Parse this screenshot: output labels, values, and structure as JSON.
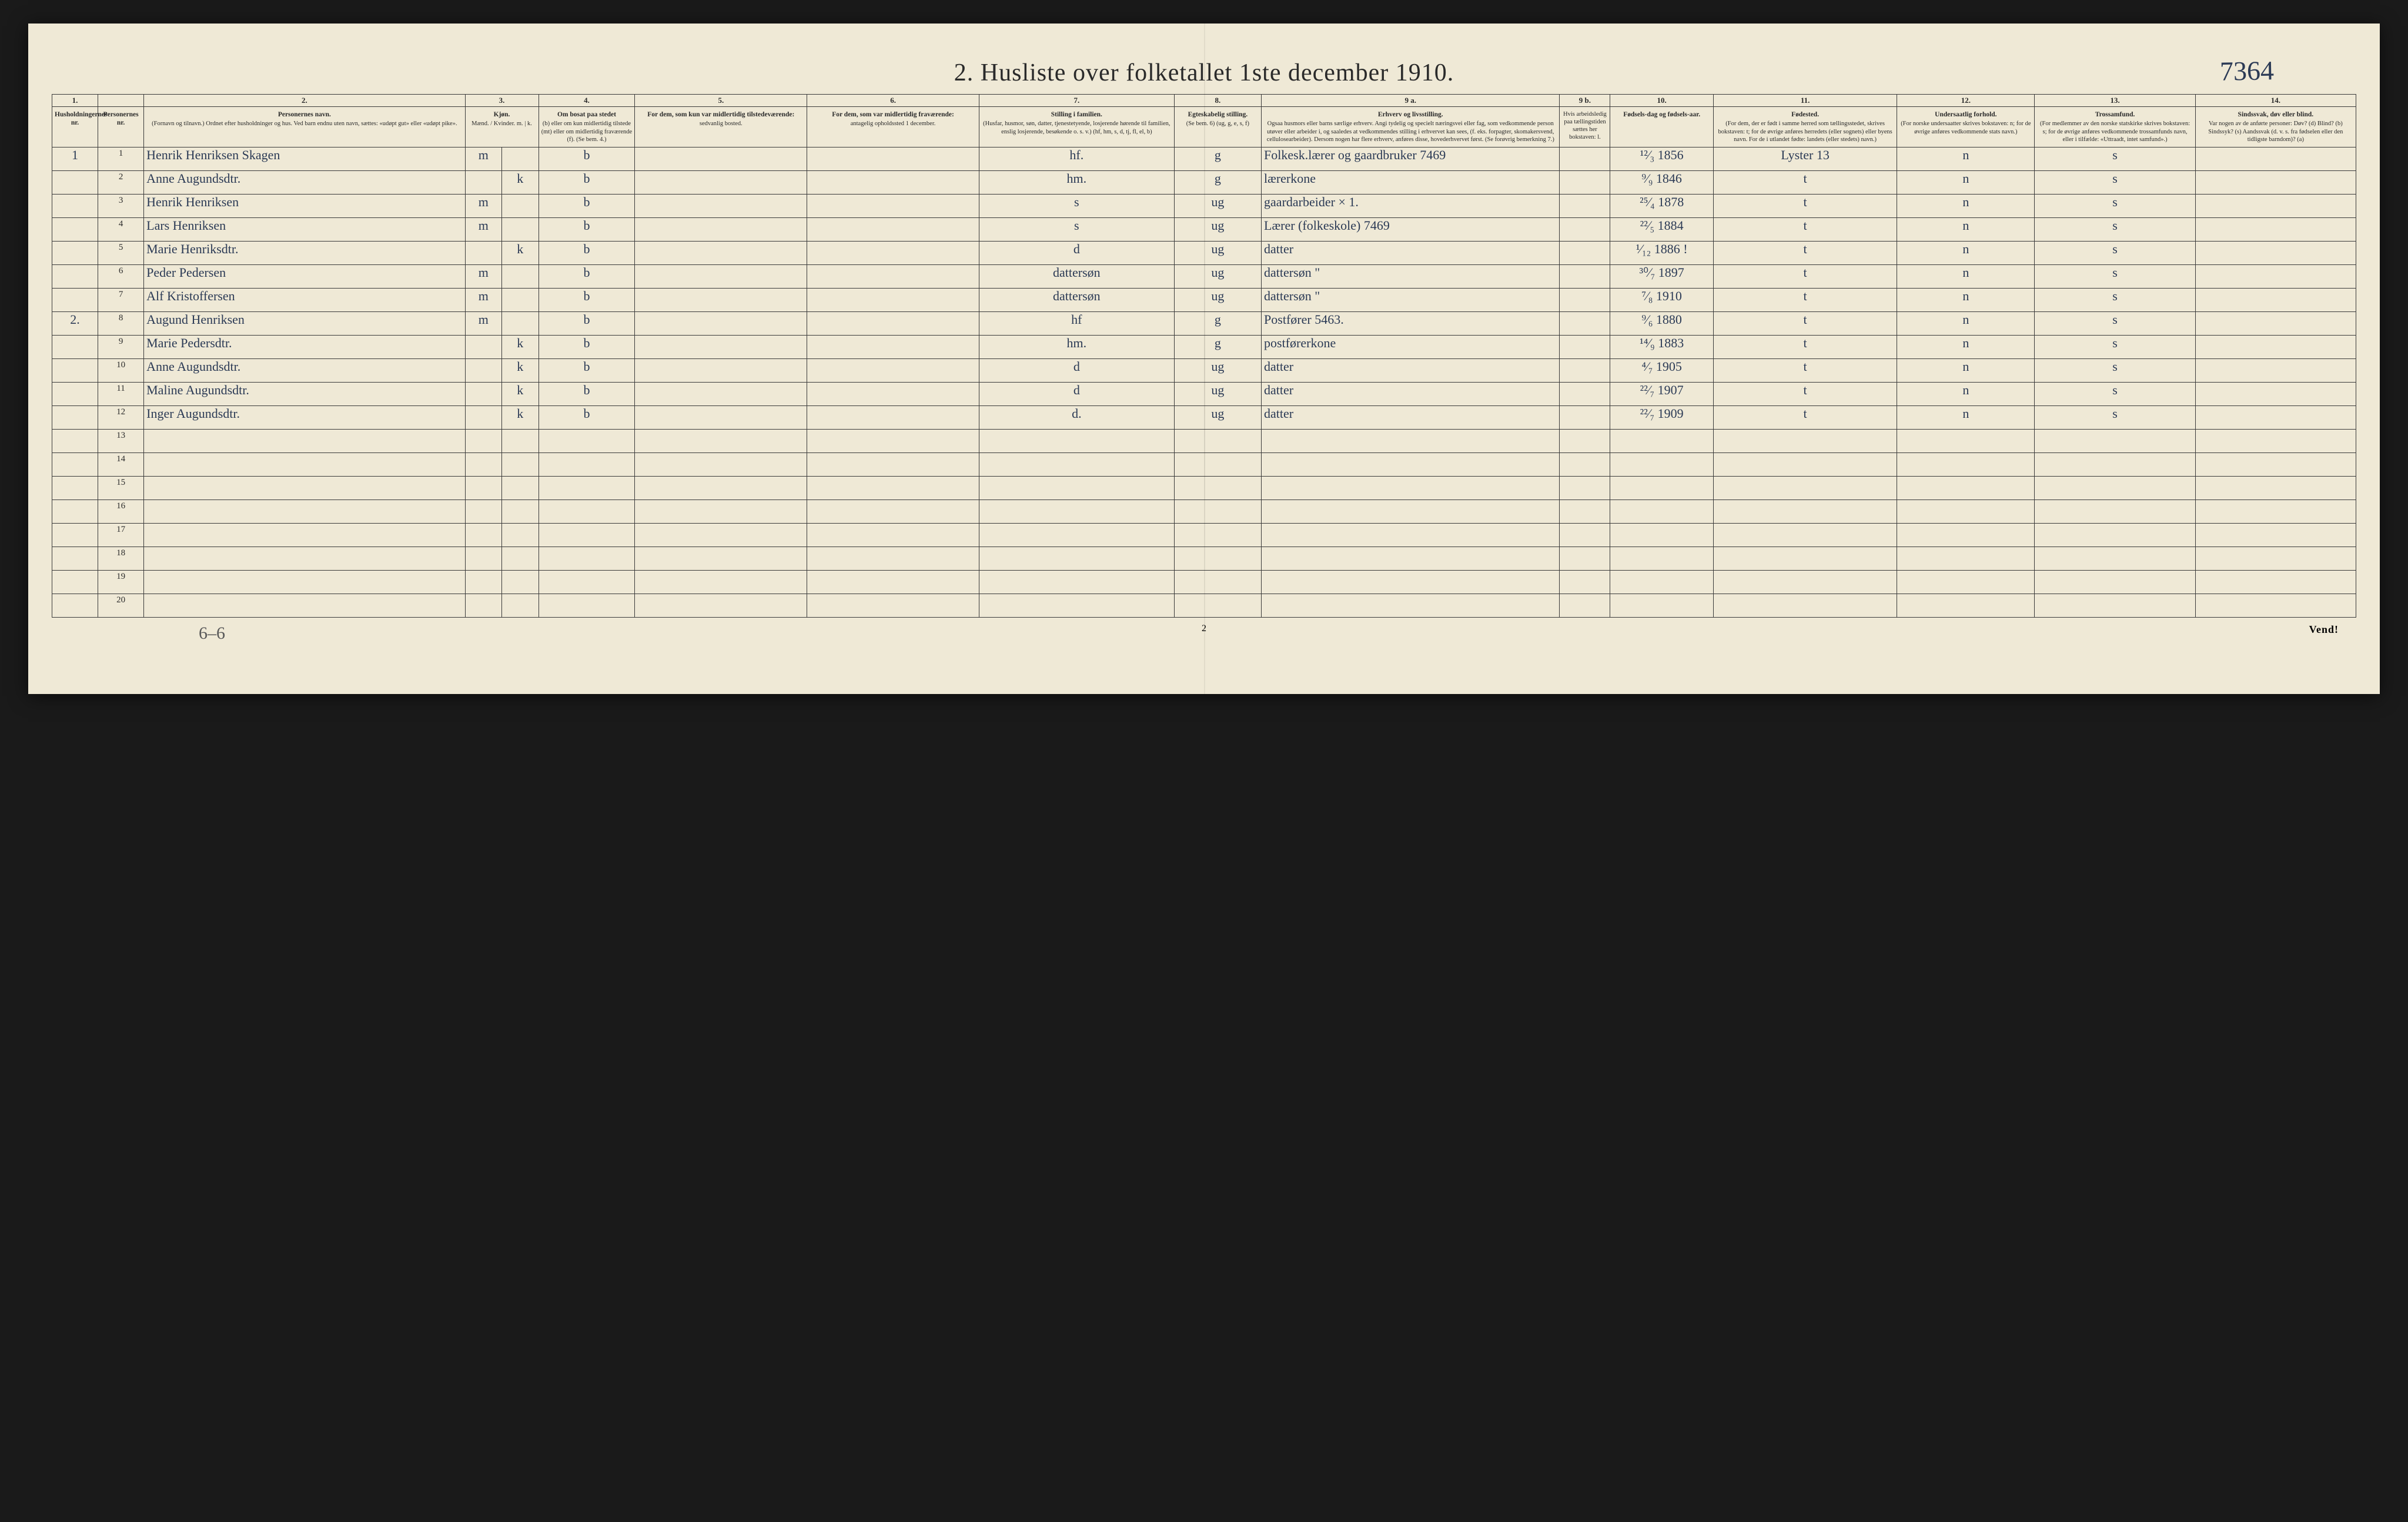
{
  "colors": {
    "page_bg": "#efe9d6",
    "frame_bg": "#1a1a1a",
    "rule": "#3a3a3a",
    "ink_print": "#2a2a2a",
    "ink_hand": "#2b3a55"
  },
  "typography": {
    "title_fontsize_pt": 32,
    "header_fontsize_pt": 9,
    "body_hand_fontsize_pt": 16,
    "font_family_print": "Times New Roman",
    "font_family_hand": "cursive"
  },
  "title": "2.  Husliste over folketallet 1ste december 1910.",
  "handwritten_code": "7364",
  "footer": {
    "page_number": "2",
    "vend": "Vend!",
    "tally": "6–6"
  },
  "column_numbers": [
    "1.",
    "",
    "2.",
    "3.",
    "",
    "4.",
    "5.",
    "6.",
    "7.",
    "8.",
    "9 a.",
    "9 b.",
    "10.",
    "11.",
    "12.",
    "13.",
    "14."
  ],
  "headers": {
    "c1": {
      "title": "Husholdningernes nr."
    },
    "c1b": {
      "title": "Personernes nr."
    },
    "c2": {
      "title": "Personernes navn.",
      "sub": "(Fornavn og tilnavn.) Ordnet efter husholdninger og hus. Ved barn endnu uten navn, sættes: «udøpt gut» eller «udøpt pike»."
    },
    "c3": {
      "title": "Kjøn.",
      "sub": "Mænd. / Kvinder.  m. | k."
    },
    "c4": {
      "title": "Om bosat paa stedet",
      "sub": "(b) eller om kun midlertidig tilstede (mt) eller om midlertidig fraværende (f). (Se bem. 4.)"
    },
    "c5": {
      "title": "For dem, som kun var midlertidig tilstedeværende:",
      "sub": "sedvanlig bosted."
    },
    "c6": {
      "title": "For dem, som var midlertidig fraværende:",
      "sub": "antagelig opholdssted 1 december."
    },
    "c7": {
      "title": "Stilling i familien.",
      "sub": "(Husfar, husmor, søn, datter, tjenestetyende, losjerende hørende til familien, enslig losjerende, besøkende o. s. v.) (hf, hm, s, d, tj, fl, el, b)"
    },
    "c8": {
      "title": "Egteskabelig stilling.",
      "sub": "(Se bem. 6) (ug, g, e, s, f)"
    },
    "c9a": {
      "title": "Erhverv og livsstilling.",
      "sub": "Ogsaa husmors eller barns særlige erhverv. Angi tydelig og specielt næringsvei eller fag, som vedkommende person utøver eller arbeider i, og saaledes at vedkommendes stilling i erhvervet kan sees, (f. eks. forpagter, skomakersvend, cellulosearbeider). Dersom nogen har flere erhverv, anføres disse, hovederhvervet først. (Se forøvrig bemerkning 7.)"
    },
    "c9b": {
      "title": "",
      "sub": "Hvis arbeidsledig paa tællingstiden sættes her bokstaven: l."
    },
    "c10": {
      "title": "Fødsels-dag og fødsels-aar."
    },
    "c11": {
      "title": "Fødested.",
      "sub": "(For dem, der er født i samme herred som tællingsstedet, skrives bokstaven: t; for de øvrige anføres herredets (eller sognets) eller byens navn. For de i utlandet fødte: landets (eller stedets) navn.)"
    },
    "c12": {
      "title": "Undersaatlig forhold.",
      "sub": "(For norske undersaatter skrives bokstaven: n; for de øvrige anføres vedkommende stats navn.)"
    },
    "c13": {
      "title": "Trossamfund.",
      "sub": "(For medlemmer av den norske statskirke skrives bokstaven: s; for de øvrige anføres vedkommende trossamfunds navn, eller i tilfælde: «Uttraadt, intet samfund».)"
    },
    "c14": {
      "title": "Sindssvak, døv eller blind.",
      "sub": "Var nogen av de anførte personer: Døv? (d)  Blind? (b)  Sindssyk? (s)  Aandssvak (d. v. s. fra fødselen eller den tidligste barndom)? (a)"
    }
  },
  "rows": [
    {
      "hh": "1",
      "pn": "1",
      "name": "Henrik Henriksen Skagen",
      "sex_m": "m",
      "sex_k": "",
      "res": "b",
      "c5": "",
      "c6": "",
      "fam": "hf.",
      "mar": "g",
      "occ": "Folkesk.lærer og gaardbruker  7469",
      "c9b": "",
      "dob": "¹²⁄₃ 1856",
      "birthplace": "Lyster  13",
      "nat": "n",
      "rel": "s",
      "c14": ""
    },
    {
      "hh": "",
      "pn": "2",
      "name": "Anne Augundsdtr.",
      "sex_m": "",
      "sex_k": "k",
      "res": "b",
      "c5": "",
      "c6": "",
      "fam": "hm.",
      "mar": "g",
      "occ": "lærerkone",
      "c9b": "",
      "dob": "⁹⁄₉ 1846",
      "birthplace": "t",
      "nat": "n",
      "rel": "s",
      "c14": ""
    },
    {
      "hh": "",
      "pn": "3",
      "name": "Henrik Henriksen",
      "sex_m": "m",
      "sex_k": "",
      "res": "b",
      "c5": "",
      "c6": "",
      "fam": "s",
      "mar": "ug",
      "occ": "gaardarbeider  × 1.",
      "c9b": "",
      "dob": "²⁵⁄₄ 1878",
      "birthplace": "t",
      "nat": "n",
      "rel": "s",
      "c14": ""
    },
    {
      "hh": "",
      "pn": "4",
      "name": "Lars Henriksen",
      "sex_m": "m",
      "sex_k": "",
      "res": "b",
      "c5": "",
      "c6": "",
      "fam": "s",
      "mar": "ug",
      "occ": "Lærer (folkeskole)  7469",
      "c9b": "",
      "dob": "²²⁄₅ 1884",
      "birthplace": "t",
      "nat": "n",
      "rel": "s",
      "c14": ""
    },
    {
      "hh": "",
      "pn": "5",
      "name": "Marie Henriksdtr.",
      "sex_m": "",
      "sex_k": "k",
      "res": "b",
      "c5": "",
      "c6": "",
      "fam": "d",
      "mar": "ug",
      "occ": "datter",
      "c9b": "",
      "dob": "¹⁄₁₂ 1886 !",
      "birthplace": "t",
      "nat": "n",
      "rel": "s",
      "c14": ""
    },
    {
      "hh": "",
      "pn": "6",
      "name": "Peder Pedersen",
      "sex_m": "m",
      "sex_k": "",
      "res": "b",
      "c5": "",
      "c6": "",
      "fam": "dattersøn",
      "mar": "ug",
      "occ": "dattersøn    \"",
      "c9b": "",
      "dob": "³⁰⁄₇ 1897",
      "birthplace": "t",
      "nat": "n",
      "rel": "s",
      "c14": ""
    },
    {
      "hh": "",
      "pn": "7",
      "name": "Alf Kristoffersen",
      "sex_m": "m",
      "sex_k": "",
      "res": "b",
      "c5": "",
      "c6": "",
      "fam": "dattersøn",
      "mar": "ug",
      "occ": "dattersøn    \"",
      "c9b": "",
      "dob": "⁷⁄₈ 1910",
      "birthplace": "t",
      "nat": "n",
      "rel": "s",
      "c14": ""
    },
    {
      "hh": "2.",
      "pn": "8",
      "name": "Augund Henriksen",
      "sex_m": "m",
      "sex_k": "",
      "res": "b",
      "c5": "",
      "c6": "",
      "fam": "hf",
      "mar": "g",
      "occ": "Postfører  5463.",
      "c9b": "",
      "dob": "⁹⁄₆ 1880",
      "birthplace": "t",
      "nat": "n",
      "rel": "s",
      "c14": ""
    },
    {
      "hh": "",
      "pn": "9",
      "name": "Marie Pedersdtr.",
      "sex_m": "",
      "sex_k": "k",
      "res": "b",
      "c5": "",
      "c6": "",
      "fam": "hm.",
      "mar": "g",
      "occ": "postførerkone",
      "c9b": "",
      "dob": "¹⁴⁄₉ 1883",
      "birthplace": "t",
      "nat": "n",
      "rel": "s",
      "c14": ""
    },
    {
      "hh": "",
      "pn": "10",
      "name": "Anne Augundsdtr.",
      "sex_m": "",
      "sex_k": "k",
      "res": "b",
      "c5": "",
      "c6": "",
      "fam": "d",
      "mar": "ug",
      "occ": "datter",
      "c9b": "",
      "dob": "⁴⁄₇ 1905",
      "birthplace": "t",
      "nat": "n",
      "rel": "s",
      "c14": ""
    },
    {
      "hh": "",
      "pn": "11",
      "name": "Maline Augundsdtr.",
      "sex_m": "",
      "sex_k": "k",
      "res": "b",
      "c5": "",
      "c6": "",
      "fam": "d",
      "mar": "ug",
      "occ": "datter",
      "c9b": "",
      "dob": "²²⁄₇ 1907",
      "birthplace": "t",
      "nat": "n",
      "rel": "s",
      "c14": ""
    },
    {
      "hh": "",
      "pn": "12",
      "name": "Inger Augundsdtr.",
      "sex_m": "",
      "sex_k": "k",
      "res": "b",
      "c5": "",
      "c6": "",
      "fam": "d.",
      "mar": "ug",
      "occ": "datter",
      "c9b": "",
      "dob": "²²⁄₇ 1909",
      "birthplace": "t",
      "nat": "n",
      "rel": "s",
      "c14": ""
    },
    {
      "hh": "",
      "pn": "13",
      "name": "",
      "sex_m": "",
      "sex_k": "",
      "res": "",
      "c5": "",
      "c6": "",
      "fam": "",
      "mar": "",
      "occ": "",
      "c9b": "",
      "dob": "",
      "birthplace": "",
      "nat": "",
      "rel": "",
      "c14": ""
    },
    {
      "hh": "",
      "pn": "14",
      "name": "",
      "sex_m": "",
      "sex_k": "",
      "res": "",
      "c5": "",
      "c6": "",
      "fam": "",
      "mar": "",
      "occ": "",
      "c9b": "",
      "dob": "",
      "birthplace": "",
      "nat": "",
      "rel": "",
      "c14": ""
    },
    {
      "hh": "",
      "pn": "15",
      "name": "",
      "sex_m": "",
      "sex_k": "",
      "res": "",
      "c5": "",
      "c6": "",
      "fam": "",
      "mar": "",
      "occ": "",
      "c9b": "",
      "dob": "",
      "birthplace": "",
      "nat": "",
      "rel": "",
      "c14": ""
    },
    {
      "hh": "",
      "pn": "16",
      "name": "",
      "sex_m": "",
      "sex_k": "",
      "res": "",
      "c5": "",
      "c6": "",
      "fam": "",
      "mar": "",
      "occ": "",
      "c9b": "",
      "dob": "",
      "birthplace": "",
      "nat": "",
      "rel": "",
      "c14": ""
    },
    {
      "hh": "",
      "pn": "17",
      "name": "",
      "sex_m": "",
      "sex_k": "",
      "res": "",
      "c5": "",
      "c6": "",
      "fam": "",
      "mar": "",
      "occ": "",
      "c9b": "",
      "dob": "",
      "birthplace": "",
      "nat": "",
      "rel": "",
      "c14": ""
    },
    {
      "hh": "",
      "pn": "18",
      "name": "",
      "sex_m": "",
      "sex_k": "",
      "res": "",
      "c5": "",
      "c6": "",
      "fam": "",
      "mar": "",
      "occ": "",
      "c9b": "",
      "dob": "",
      "birthplace": "",
      "nat": "",
      "rel": "",
      "c14": ""
    },
    {
      "hh": "",
      "pn": "19",
      "name": "",
      "sex_m": "",
      "sex_k": "",
      "res": "",
      "c5": "",
      "c6": "",
      "fam": "",
      "mar": "",
      "occ": "",
      "c9b": "",
      "dob": "",
      "birthplace": "",
      "nat": "",
      "rel": "",
      "c14": ""
    },
    {
      "hh": "",
      "pn": "20",
      "name": "",
      "sex_m": "",
      "sex_k": "",
      "res": "",
      "c5": "",
      "c6": "",
      "fam": "",
      "mar": "",
      "occ": "",
      "c9b": "",
      "dob": "",
      "birthplace": "",
      "nat": "",
      "rel": "",
      "c14": ""
    }
  ]
}
